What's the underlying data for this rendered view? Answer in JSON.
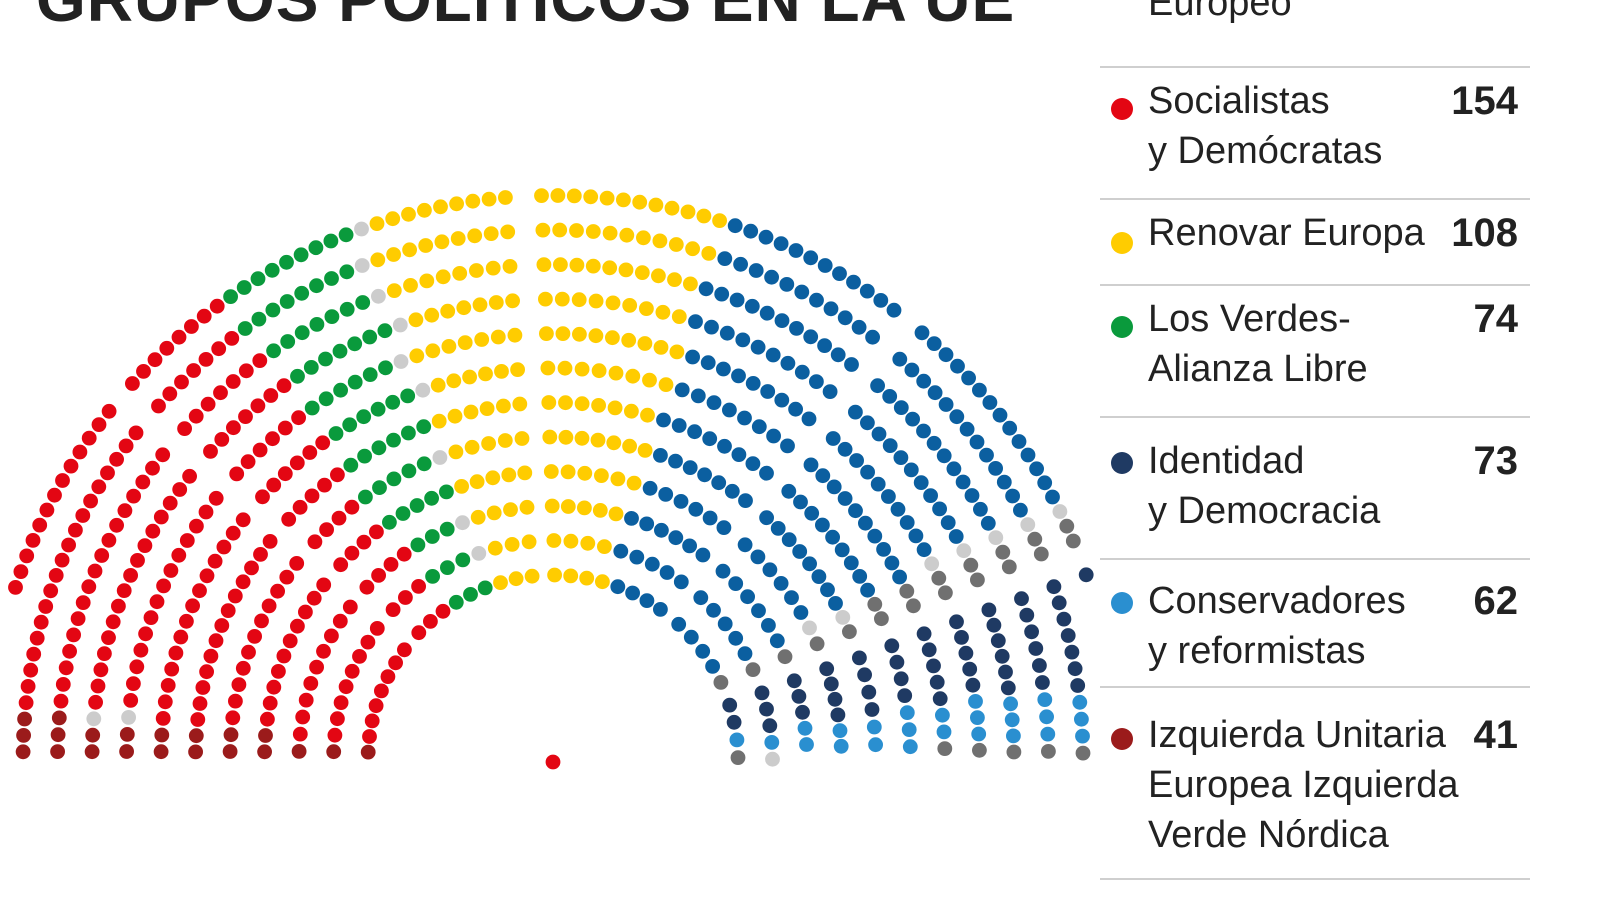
{
  "chart_data": {
    "type": "parliament",
    "title": "GRUPOS POLÍTICOS EN LA UE",
    "groups": [
      {
        "key": "epp",
        "name": "Europeo",
        "value": null,
        "color": null
      },
      {
        "key": "sd",
        "name": "Socialistas\ny Demócratas",
        "value": 154,
        "color": "#e30613"
      },
      {
        "key": "renew",
        "name": "Renovar Europa",
        "value": 108,
        "color": "#ffcc00"
      },
      {
        "key": "greens",
        "name": "Los Verdes-\nAlianza Libre",
        "value": 74,
        "color": "#0a9a3c"
      },
      {
        "key": "id",
        "name": "Identidad\ny Democracia",
        "value": 73,
        "color": "#1f3a63"
      },
      {
        "key": "ecr",
        "name": "Conservadores\ny reformistas",
        "value": 62,
        "color": "#2a8fd0"
      },
      {
        "key": "gue",
        "name": "Izquierda Unitaria\nEuropea Izquierda\nVerde Nórdica",
        "value": 41,
        "color": "#9b1b1b"
      }
    ],
    "visible_seat_colors": {
      "sd": "#e30613",
      "gue": "#9b1b1b",
      "greens": "#0a9a3c",
      "renew": "#ffcc00",
      "epp": "#0b5fa0",
      "ecr": "#2a8fd0",
      "id": "#1f3a63",
      "ni": "#707070",
      "other": "#cccccc"
    }
  }
}
